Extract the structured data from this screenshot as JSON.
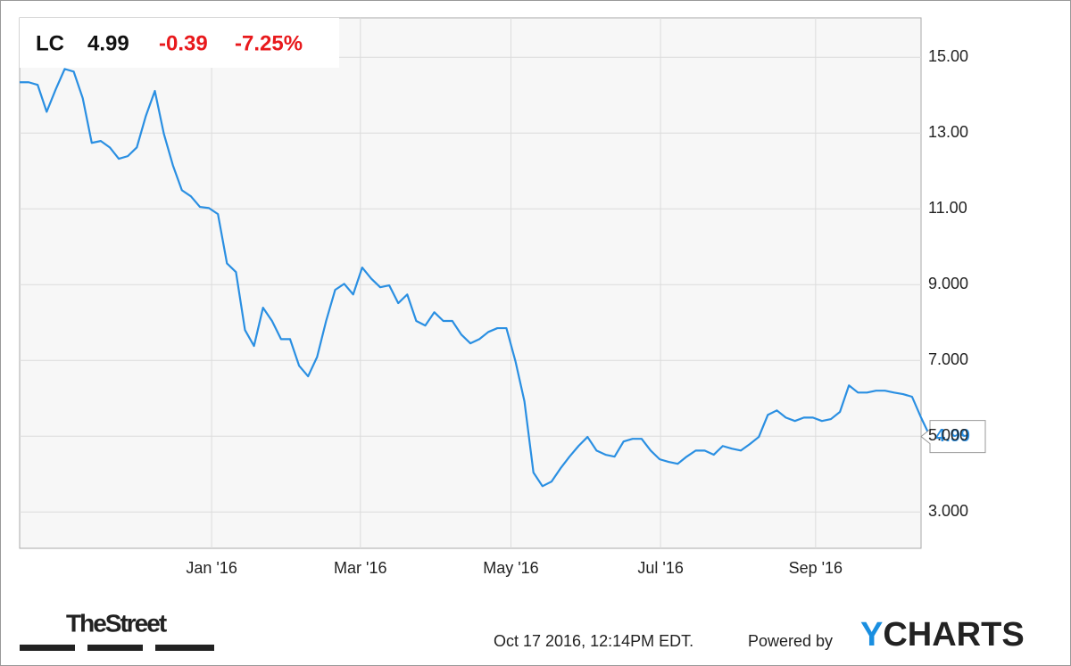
{
  "header": {
    "ticker": "LC",
    "price": "4.99",
    "change": "-0.39",
    "change_pct": "-7.25%"
  },
  "chart_data": {
    "type": "line",
    "color": "#2a8fe2",
    "grid": true,
    "values": [
      14.34,
      14.34,
      14.27,
      13.56,
      14.15,
      14.69,
      14.62,
      13.92,
      12.74,
      12.79,
      12.62,
      12.32,
      12.39,
      12.62,
      13.45,
      14.11,
      12.98,
      12.15,
      11.49,
      11.33,
      11.05,
      11.02,
      10.86,
      9.56,
      9.33,
      7.8,
      7.38,
      8.39,
      8.04,
      7.56,
      7.56,
      6.86,
      6.58,
      7.09,
      8.04,
      8.86,
      9.02,
      8.74,
      9.45,
      9.16,
      8.93,
      8.98,
      8.51,
      8.74,
      8.04,
      7.92,
      8.27,
      8.04,
      8.04,
      7.68,
      7.45,
      7.56,
      7.75,
      7.85,
      7.85,
      6.98,
      5.92,
      4.04,
      3.68,
      3.8,
      4.15,
      4.46,
      4.74,
      4.98,
      4.62,
      4.51,
      4.46,
      4.86,
      4.93,
      4.93,
      4.62,
      4.39,
      4.32,
      4.27,
      4.46,
      4.62,
      4.62,
      4.51,
      4.74,
      4.67,
      4.62,
      4.79,
      4.98,
      5.56,
      5.68,
      5.49,
      5.4,
      5.49,
      5.49,
      5.4,
      5.45,
      5.64,
      6.34,
      6.15,
      6.15,
      6.2,
      6.2,
      6.15,
      6.11,
      6.04,
      5.49,
      4.99
    ],
    "xlim": [
      0,
      100
    ],
    "xticks": [
      {
        "value": 21.3,
        "label": "Jan '16"
      },
      {
        "value": 37.8,
        "label": "Mar '16"
      },
      {
        "value": 54.5,
        "label": "May '16"
      },
      {
        "value": 71.1,
        "label": "Jul '16"
      },
      {
        "value": 88.3,
        "label": "Sep '16"
      }
    ],
    "ylim": [
      2.04,
      16.04
    ],
    "yticks": [
      {
        "value": 3,
        "label": "3.000"
      },
      {
        "value": 5,
        "label": "5.000"
      },
      {
        "value": 7,
        "label": "7.000"
      },
      {
        "value": 9,
        "label": "9.000"
      },
      {
        "value": 11,
        "label": "11.00"
      },
      {
        "value": 13,
        "label": "13.00"
      },
      {
        "value": 15,
        "label": "15.00"
      }
    ]
  },
  "footer": {
    "source_logo": "TheStreet",
    "timestamp": "Oct 17 2016, 12:14PM EDT.",
    "powered_by": "Powered by",
    "brand_y": "Y",
    "brand_rest": "CHARTS"
  }
}
